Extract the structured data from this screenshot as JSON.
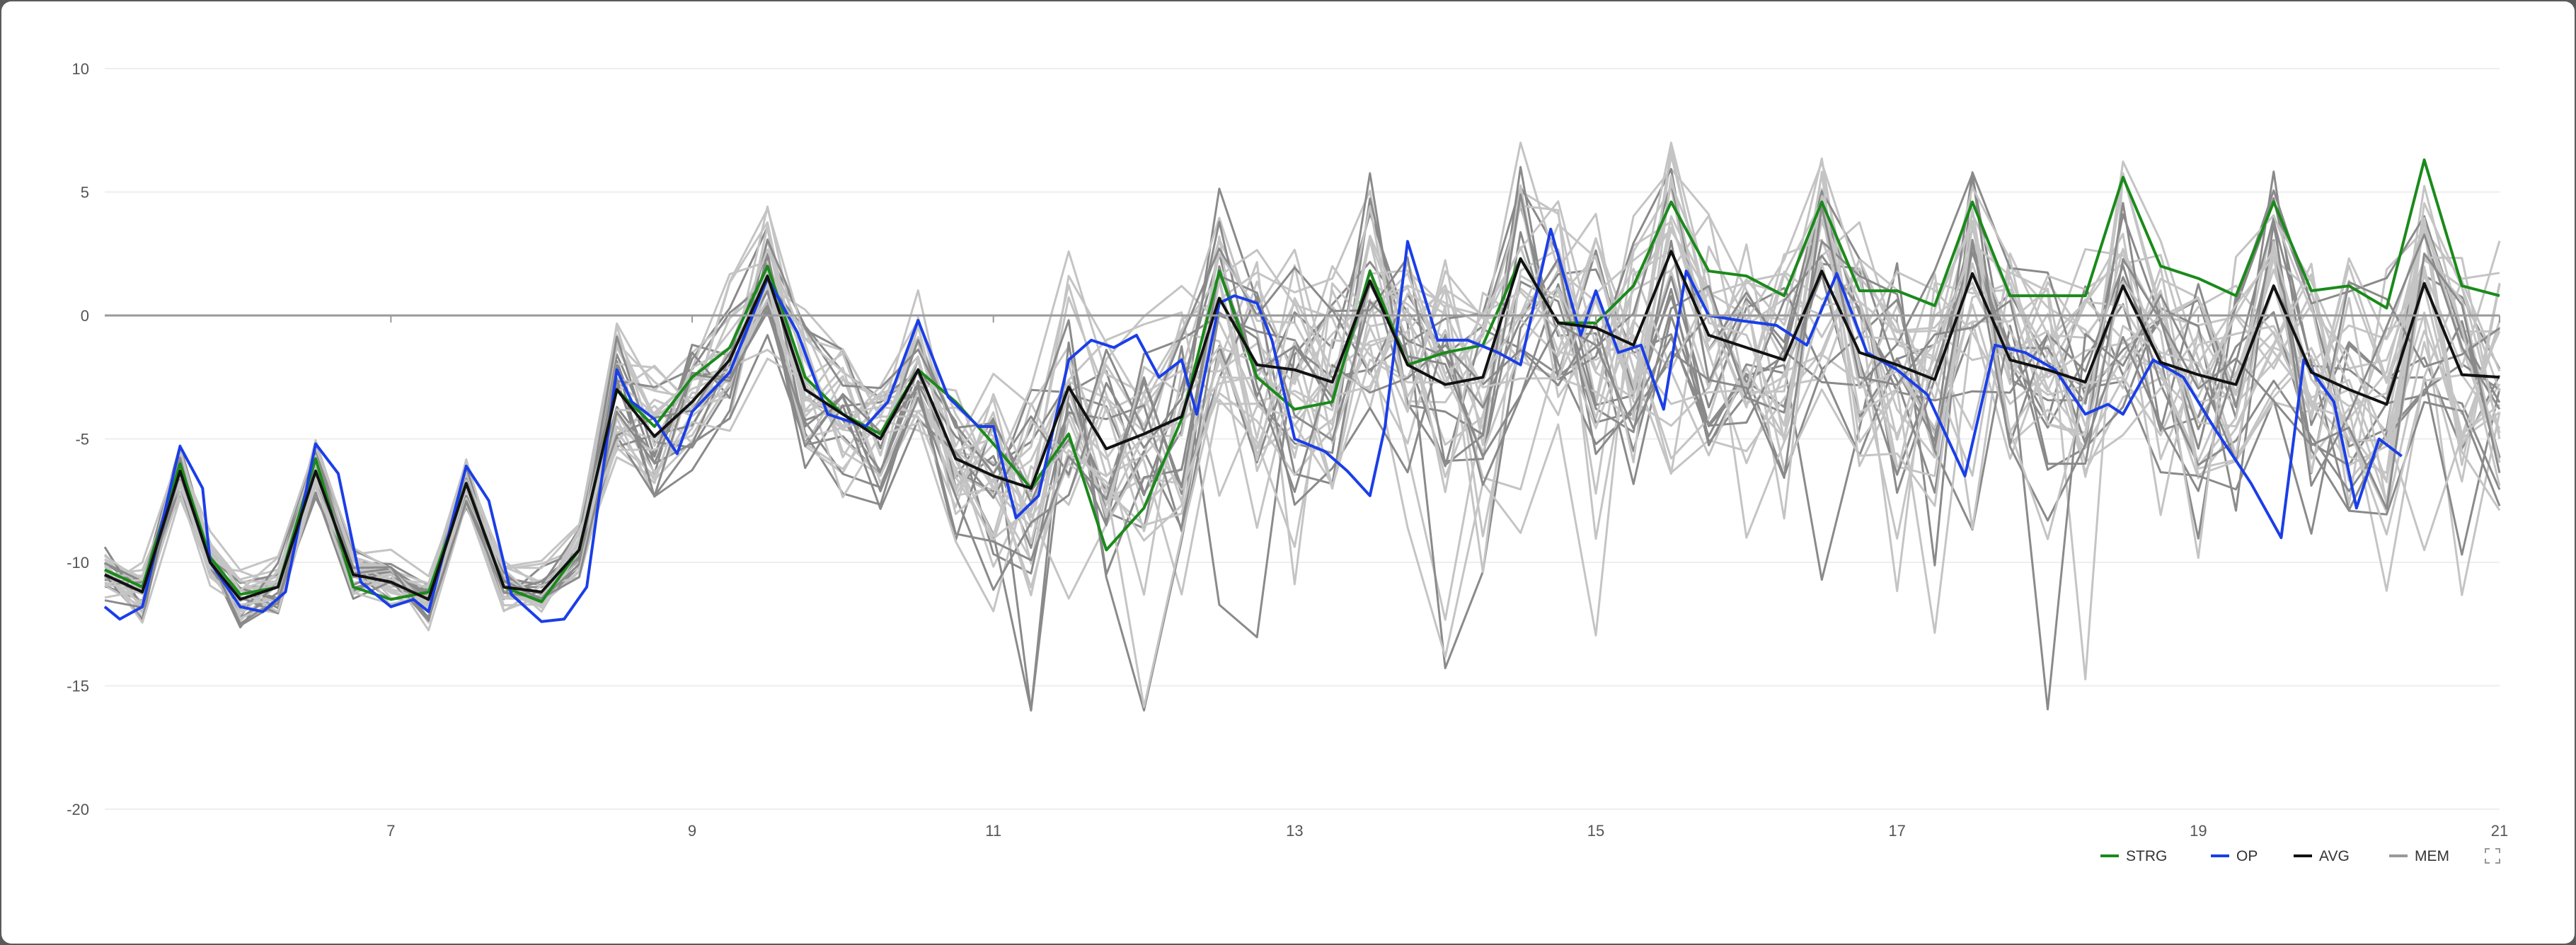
{
  "chart_data": {
    "type": "line",
    "title": "",
    "xlabel": "",
    "ylabel": "",
    "xlim": [
      5.1,
      21
    ],
    "ylim": [
      -20,
      10
    ],
    "x_ticks": [
      "7",
      "9",
      "11",
      "13",
      "15",
      "17",
      "19",
      "21"
    ],
    "y_ticks": [
      "10",
      "5",
      "0",
      "-5",
      "-10",
      "-15",
      "-20"
    ],
    "grid": true,
    "zero_line": true,
    "legend_position": "bottom-right",
    "colors": {
      "STRG": "#1a8a1a",
      "OP": "#1a3ee8",
      "AVG": "#111111",
      "MEM_dark": "#8a8a8a",
      "MEM_light": "#c4c4c4"
    },
    "legend": [
      {
        "name": "STRG",
        "color": "#1a8a1a"
      },
      {
        "name": "OP",
        "color": "#1a3ee8"
      },
      {
        "name": "AVG",
        "color": "#111111"
      },
      {
        "name": "MEM",
        "color": "#999999"
      }
    ],
    "series": [
      {
        "name": "STRG",
        "color": "#1a8a1a",
        "points": [
          [
            5.1,
            -10.3
          ],
          [
            5.35,
            -11.0
          ],
          [
            5.6,
            -6.0
          ],
          [
            5.8,
            -9.8
          ],
          [
            6.0,
            -11.3
          ],
          [
            6.25,
            -11.0
          ],
          [
            6.5,
            -5.8
          ],
          [
            6.75,
            -11.0
          ],
          [
            7.0,
            -11.5
          ],
          [
            7.25,
            -11.2
          ],
          [
            7.5,
            -6.8
          ],
          [
            7.75,
            -11.0
          ],
          [
            8.0,
            -11.6
          ],
          [
            8.25,
            -9.5
          ],
          [
            8.5,
            -3.0
          ],
          [
            8.75,
            -4.5
          ],
          [
            9.0,
            -2.5
          ],
          [
            9.25,
            -1.3
          ],
          [
            9.5,
            2.0
          ],
          [
            9.75,
            -2.5
          ],
          [
            10.0,
            -4.0
          ],
          [
            10.25,
            -4.8
          ],
          [
            10.5,
            -2.2
          ],
          [
            10.75,
            -3.5
          ],
          [
            11.0,
            -5.2
          ],
          [
            11.25,
            -7.0
          ],
          [
            11.5,
            -4.8
          ],
          [
            11.75,
            -9.5
          ],
          [
            12.0,
            -7.8
          ],
          [
            12.25,
            -4.2
          ],
          [
            12.5,
            1.8
          ],
          [
            12.75,
            -2.5
          ],
          [
            13.0,
            -3.8
          ],
          [
            13.25,
            -3.5
          ],
          [
            13.5,
            1.8
          ],
          [
            13.75,
            -2.0
          ],
          [
            14.0,
            -1.5
          ],
          [
            14.25,
            -1.2
          ],
          [
            14.5,
            2.3
          ],
          [
            14.75,
            -0.3
          ],
          [
            15.0,
            -0.3
          ],
          [
            15.25,
            1.2
          ],
          [
            15.5,
            4.6
          ],
          [
            15.75,
            1.8
          ],
          [
            16.0,
            1.6
          ],
          [
            16.25,
            0.8
          ],
          [
            16.5,
            4.6
          ],
          [
            16.75,
            1.0
          ],
          [
            17.0,
            1.0
          ],
          [
            17.25,
            0.4
          ],
          [
            17.5,
            4.6
          ],
          [
            17.75,
            0.8
          ],
          [
            18.0,
            0.8
          ],
          [
            18.25,
            0.8
          ],
          [
            18.5,
            5.6
          ],
          [
            18.75,
            2.0
          ],
          [
            19.0,
            1.5
          ],
          [
            19.25,
            0.8
          ],
          [
            19.5,
            4.6
          ],
          [
            19.75,
            1.0
          ],
          [
            20.0,
            1.2
          ],
          [
            20.25,
            0.3
          ],
          [
            20.5,
            6.3
          ],
          [
            20.75,
            1.2
          ],
          [
            21.0,
            0.8
          ]
        ]
      },
      {
        "name": "OP",
        "color": "#1a3ee8",
        "points": [
          [
            5.1,
            -11.8
          ],
          [
            5.2,
            -12.3
          ],
          [
            5.35,
            -11.8
          ],
          [
            5.6,
            -5.3
          ],
          [
            5.75,
            -7.0
          ],
          [
            5.8,
            -10.0
          ],
          [
            6.0,
            -11.8
          ],
          [
            6.15,
            -12.0
          ],
          [
            6.3,
            -11.2
          ],
          [
            6.5,
            -5.2
          ],
          [
            6.65,
            -6.4
          ],
          [
            6.8,
            -10.8
          ],
          [
            7.0,
            -11.8
          ],
          [
            7.15,
            -11.5
          ],
          [
            7.25,
            -12.0
          ],
          [
            7.5,
            -6.1
          ],
          [
            7.65,
            -7.5
          ],
          [
            7.8,
            -11.3
          ],
          [
            8.0,
            -12.4
          ],
          [
            8.15,
            -12.3
          ],
          [
            8.3,
            -11.0
          ],
          [
            8.5,
            -2.2
          ],
          [
            8.6,
            -3.5
          ],
          [
            8.75,
            -4.2
          ],
          [
            8.9,
            -5.6
          ],
          [
            9.0,
            -3.9
          ],
          [
            9.25,
            -2.3
          ],
          [
            9.5,
            1.5
          ],
          [
            9.7,
            -0.7
          ],
          [
            9.9,
            -4.0
          ],
          [
            10.15,
            -4.5
          ],
          [
            10.3,
            -3.5
          ],
          [
            10.5,
            -0.2
          ],
          [
            10.7,
            -3.3
          ],
          [
            10.9,
            -4.5
          ],
          [
            11.0,
            -4.5
          ],
          [
            11.15,
            -8.2
          ],
          [
            11.3,
            -7.3
          ],
          [
            11.5,
            -1.8
          ],
          [
            11.65,
            -1.0
          ],
          [
            11.8,
            -1.3
          ],
          [
            11.95,
            -0.8
          ],
          [
            12.1,
            -2.5
          ],
          [
            12.25,
            -1.8
          ],
          [
            12.35,
            -4.0
          ],
          [
            12.5,
            0.5
          ],
          [
            12.6,
            0.8
          ],
          [
            12.75,
            0.5
          ],
          [
            12.85,
            -1.0
          ],
          [
            13.0,
            -5.0
          ],
          [
            13.2,
            -5.5
          ],
          [
            13.35,
            -6.3
          ],
          [
            13.5,
            -7.3
          ],
          [
            13.6,
            -4.5
          ],
          [
            13.75,
            3.0
          ],
          [
            13.95,
            -1.0
          ],
          [
            14.15,
            -1.0
          ],
          [
            14.35,
            -1.5
          ],
          [
            14.5,
            -2.0
          ],
          [
            14.7,
            3.5
          ],
          [
            14.9,
            -0.8
          ],
          [
            15.0,
            1.0
          ],
          [
            15.15,
            -1.5
          ],
          [
            15.3,
            -1.2
          ],
          [
            15.45,
            -3.8
          ],
          [
            15.6,
            1.8
          ],
          [
            15.75,
            0.0
          ],
          [
            15.95,
            -0.2
          ],
          [
            16.2,
            -0.4
          ],
          [
            16.4,
            -1.2
          ],
          [
            16.6,
            1.7
          ],
          [
            16.8,
            -1.5
          ],
          [
            17.0,
            -2.2
          ],
          [
            17.2,
            -3.2
          ],
          [
            17.45,
            -6.5
          ],
          [
            17.65,
            -1.2
          ],
          [
            17.85,
            -1.5
          ],
          [
            18.05,
            -2.2
          ],
          [
            18.25,
            -4.0
          ],
          [
            18.4,
            -3.6
          ],
          [
            18.5,
            -4.0
          ],
          [
            18.7,
            -1.8
          ],
          [
            18.9,
            -2.5
          ],
          [
            19.1,
            -4.5
          ],
          [
            19.35,
            -6.8
          ],
          [
            19.55,
            -9.0
          ],
          [
            19.7,
            -1.8
          ],
          [
            19.9,
            -3.5
          ],
          [
            20.05,
            -7.8
          ],
          [
            20.2,
            -5.0
          ],
          [
            20.35,
            -5.7
          ]
        ]
      },
      {
        "name": "AVG",
        "color": "#111111",
        "points": [
          [
            5.1,
            -10.5
          ],
          [
            5.35,
            -11.2
          ],
          [
            5.6,
            -6.3
          ],
          [
            5.8,
            -10.0
          ],
          [
            6.0,
            -11.5
          ],
          [
            6.25,
            -11.0
          ],
          [
            6.5,
            -6.3
          ],
          [
            6.75,
            -10.5
          ],
          [
            7.0,
            -10.8
          ],
          [
            7.25,
            -11.5
          ],
          [
            7.5,
            -6.8
          ],
          [
            7.75,
            -11.0
          ],
          [
            8.0,
            -11.2
          ],
          [
            8.25,
            -9.5
          ],
          [
            8.5,
            -3.0
          ],
          [
            8.75,
            -4.9
          ],
          [
            9.0,
            -3.5
          ],
          [
            9.25,
            -1.8
          ],
          [
            9.5,
            1.6
          ],
          [
            9.75,
            -3.0
          ],
          [
            10.0,
            -4.0
          ],
          [
            10.25,
            -5.0
          ],
          [
            10.5,
            -2.2
          ],
          [
            10.75,
            -5.8
          ],
          [
            11.0,
            -6.5
          ],
          [
            11.25,
            -7.0
          ],
          [
            11.5,
            -2.9
          ],
          [
            11.75,
            -5.4
          ],
          [
            12.0,
            -4.8
          ],
          [
            12.25,
            -4.1
          ],
          [
            12.5,
            0.7
          ],
          [
            12.75,
            -2.0
          ],
          [
            13.0,
            -2.2
          ],
          [
            13.25,
            -2.7
          ],
          [
            13.5,
            1.4
          ],
          [
            13.75,
            -2.0
          ],
          [
            14.0,
            -2.8
          ],
          [
            14.25,
            -2.5
          ],
          [
            14.5,
            2.3
          ],
          [
            14.75,
            -0.3
          ],
          [
            15.0,
            -0.5
          ],
          [
            15.25,
            -1.2
          ],
          [
            15.5,
            2.6
          ],
          [
            15.75,
            -0.8
          ],
          [
            16.0,
            -1.3
          ],
          [
            16.25,
            -1.8
          ],
          [
            16.5,
            1.8
          ],
          [
            16.75,
            -1.5
          ],
          [
            17.0,
            -2.0
          ],
          [
            17.25,
            -2.6
          ],
          [
            17.5,
            1.7
          ],
          [
            17.75,
            -1.8
          ],
          [
            18.0,
            -2.2
          ],
          [
            18.25,
            -2.7
          ],
          [
            18.5,
            1.2
          ],
          [
            18.75,
            -1.9
          ],
          [
            19.0,
            -2.4
          ],
          [
            19.25,
            -2.8
          ],
          [
            19.5,
            1.2
          ],
          [
            19.75,
            -2.3
          ],
          [
            20.0,
            -3.0
          ],
          [
            20.25,
            -3.6
          ],
          [
            20.5,
            1.3
          ],
          [
            20.75,
            -2.4
          ],
          [
            21.0,
            -2.5
          ]
        ]
      }
    ]
  }
}
